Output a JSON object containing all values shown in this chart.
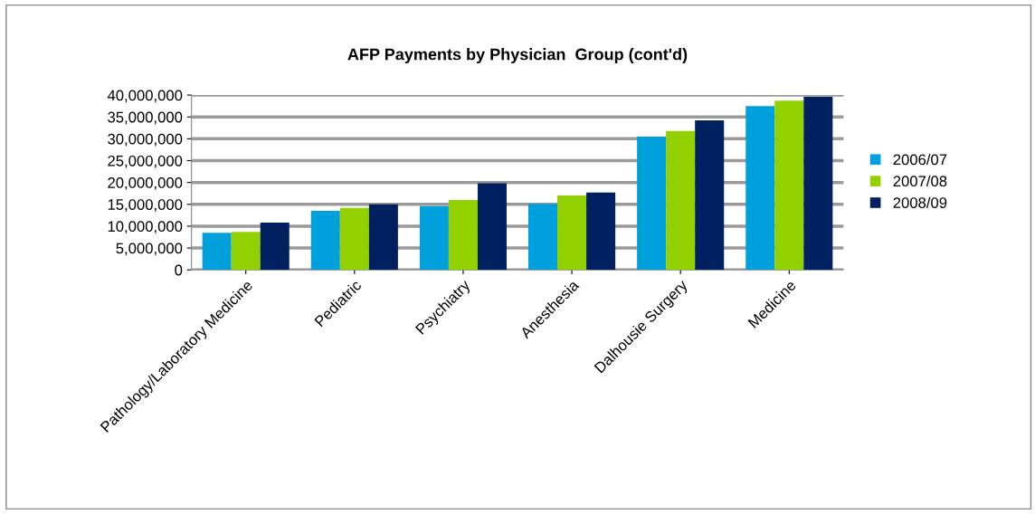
{
  "chart_data": {
    "type": "bar",
    "title": "AFP Payments by Physician  Group (cont'd)",
    "categories": [
      "Pathology/Laboratory Medicine",
      "Pediatric",
      "Psychiatry",
      "Anesthesia",
      "Dalhousie Surgery",
      "Medicine"
    ],
    "series": [
      {
        "name": "2006/07",
        "color": "#00a0dc",
        "values": [
          8500000,
          13500000,
          14600000,
          15100000,
          30500000,
          37500000
        ]
      },
      {
        "name": "2007/08",
        "color": "#92d000",
        "values": [
          8700000,
          14200000,
          16000000,
          17000000,
          31800000,
          38700000
        ]
      },
      {
        "name": "2008/09",
        "color": "#002060",
        "values": [
          10800000,
          15000000,
          19800000,
          17700000,
          34200000,
          39600000
        ]
      }
    ],
    "ylim": [
      0,
      40000000
    ],
    "yticks": [
      {
        "value": 0,
        "label": "0"
      },
      {
        "value": 5000000,
        "label": "5,000,000"
      },
      {
        "value": 10000000,
        "label": "10,000,000"
      },
      {
        "value": 15000000,
        "label": "15,000,000"
      },
      {
        "value": 20000000,
        "label": "20,000,000"
      },
      {
        "value": 25000000,
        "label": "25,000,000"
      },
      {
        "value": 30000000,
        "label": "30,000,000"
      },
      {
        "value": 35000000,
        "label": "35,000,000"
      },
      {
        "value": 40000000,
        "label": "40,000,000"
      }
    ],
    "grid": "y",
    "legend": "right"
  }
}
